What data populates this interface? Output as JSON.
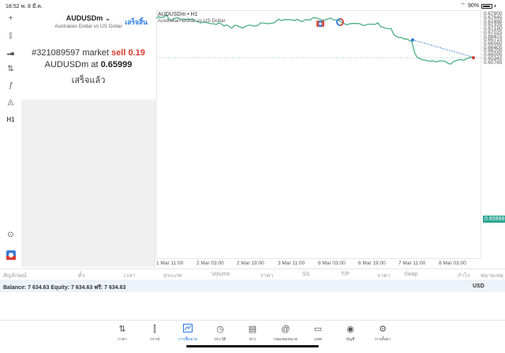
{
  "status_bar": {
    "time": "18:52",
    "date": "พ. 8 มี.ค.",
    "battery": "90%"
  },
  "left_toolbar": [
    {
      "name": "crosshair-icon",
      "glyph": "+"
    },
    {
      "name": "candlestick-icon",
      "glyph": "⫿"
    },
    {
      "name": "indicators-icon",
      "glyph": "▂▄"
    },
    {
      "name": "settings-sliders-icon",
      "glyph": "⇅"
    },
    {
      "name": "function-icon",
      "glyph": "ƒ"
    },
    {
      "name": "objects-icon",
      "glyph": "◬"
    },
    {
      "name": "timeframe-label",
      "glyph": "H1"
    },
    {
      "name": "chart-search-icon",
      "glyph": "⊙"
    },
    {
      "name": "trade-app-icon",
      "glyph": "◘"
    }
  ],
  "order_panel": {
    "symbol": "AUDUSDm ⌄",
    "description": "Australian Dollar vs US Dollar",
    "done_label": "เสร็จสิ้น",
    "line1_prefix": "#321089597 market ",
    "line1_action": "sell 0.19",
    "line2_prefix": "AUDUSDm at ",
    "line2_price": "0.65999",
    "line3": "เสร็จแล้ว"
  },
  "chart": {
    "title": "AUDUSDm • H1",
    "subtitle": "Australian Dollar vs US Dollar",
    "current_price": "0.65999",
    "line_color": "#4caf82",
    "accent_price_color": "#2aa592"
  },
  "chart_data": {
    "type": "line",
    "title": "AUDUSDm • H1",
    "ylim": [
      0.577,
      0.679
    ],
    "y_ticks": [
      "0.67800",
      "0.67645",
      "0.67490",
      "0.67335",
      "0.67180",
      "0.67025",
      "0.66870",
      "0.66715",
      "0.66560",
      "0.66405",
      "0.66250",
      "0.66095",
      "0.65940",
      "0.65785"
    ],
    "x_ticks": [
      "1 Mar 11:00",
      "2 Mar 03:00",
      "2 Mar 19:00",
      "3 Mar 11:00",
      "6 Mar 03:00",
      "6 Mar 19:00",
      "7 Mar 11:00",
      "8 Mar 03:00"
    ],
    "series": [
      {
        "name": "AUDUSDm close",
        "values": [
          0.6764,
          0.677,
          0.6766,
          0.6769,
          0.6778,
          0.6756,
          0.6756,
          0.6763,
          0.6766,
          0.6762,
          0.6755,
          0.6758,
          0.676,
          0.6759,
          0.6761,
          0.6751,
          0.6749,
          0.6744,
          0.6747,
          0.6747,
          0.6744,
          0.6741,
          0.6741,
          0.6737,
          0.6745,
          0.674,
          0.6731,
          0.6736,
          0.6729,
          0.6722,
          0.6734,
          0.6733,
          0.6728,
          0.6723,
          0.6729,
          0.6733,
          0.6735,
          0.6732,
          0.6731,
          0.6734,
          0.6744,
          0.6744,
          0.6742,
          0.6741,
          0.6743,
          0.6744,
          0.6752,
          0.676,
          0.6753,
          0.6758,
          0.6758,
          0.6758,
          0.6757,
          0.6754,
          0.6759,
          0.6754,
          0.6749,
          0.6757,
          0.6758,
          0.6756,
          0.6765,
          0.6765,
          0.6763,
          0.6758,
          0.6756,
          0.6757,
          0.6762,
          0.6764,
          0.6756,
          0.6756,
          0.6755,
          0.6747,
          0.6742,
          0.6736,
          0.674,
          0.6742,
          0.6742,
          0.6742,
          0.6741,
          0.6735,
          0.6734,
          0.6738,
          0.6739,
          0.6739,
          0.6738,
          0.6745,
          0.6729,
          0.6726,
          0.6722,
          0.672,
          0.6721,
          0.6698,
          0.6688,
          0.6684,
          0.6684,
          0.6678,
          0.6678,
          0.6672,
          0.6666,
          0.6623,
          0.6601,
          0.6596,
          0.6592,
          0.659,
          0.6588,
          0.6585,
          0.6588,
          0.6583,
          0.6585,
          0.6587,
          0.6587,
          0.6584,
          0.6576,
          0.6574,
          0.6585,
          0.6588,
          0.6592,
          0.6592,
          0.659,
          0.6596,
          0.66,
          0.6602
        ]
      }
    ],
    "annotations": [
      {
        "type": "trade-line",
        "from_price": 0.6674,
        "to_price": 0.6602,
        "style": "dotted",
        "color": "#2b7be0"
      },
      {
        "type": "current-price-line",
        "price": 0.65999
      }
    ]
  },
  "positions_table": {
    "columns": [
      "สัญลักษณ์",
      "ตั๋ว",
      "เวลา",
      "ประเภท",
      "Volume",
      "ราคา",
      "S/L",
      "T/P",
      "ราคา",
      "Swap",
      "กำไร",
      "หมายเหตุ"
    ],
    "balance_text": "Balance: 7 634.63 Equity: 7 634.63 ฟรี: 7 634.63",
    "currency": "USD"
  },
  "bottom_nav": [
    {
      "name": "quotes",
      "label": "ราคา",
      "glyph": "⇅",
      "active": false
    },
    {
      "name": "charts",
      "label": "กราฟ",
      "glyph": "⫿",
      "active": false
    },
    {
      "name": "trade",
      "label": "การซื้อขาย",
      "glyph": "📈",
      "active": true
    },
    {
      "name": "history",
      "label": "ประวัติ",
      "glyph": "◷",
      "active": false
    },
    {
      "name": "news",
      "label": "ข่าว",
      "glyph": "▤",
      "active": false
    },
    {
      "name": "mailbox",
      "label": "กล่องจดหมาย",
      "glyph": "@",
      "active": false
    },
    {
      "name": "chat",
      "label": "แชท",
      "glyph": "▭",
      "active": false
    },
    {
      "name": "account",
      "label": "บัญชี",
      "glyph": "◉",
      "active": false
    },
    {
      "name": "settings",
      "label": "การตั้งค่า",
      "glyph": "⚙",
      "active": false
    }
  ]
}
